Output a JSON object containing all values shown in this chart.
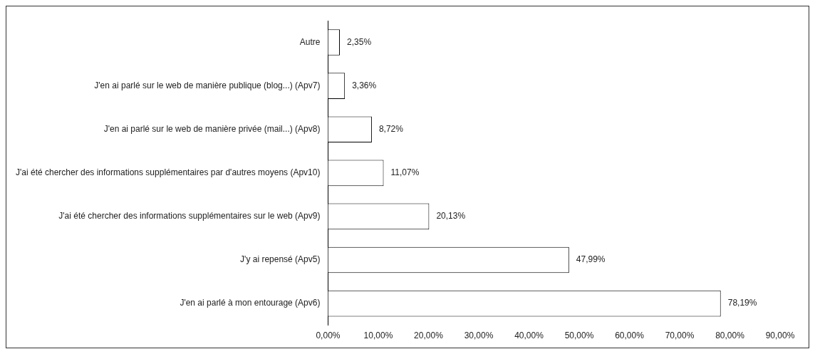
{
  "chart_data": {
    "type": "bar",
    "orientation": "horizontal",
    "categories": [
      "Autre",
      "J'en ai parlé sur le web de manière publique (blog...) (Apv7)",
      "J'en ai parlé sur le web de manière privée (mail...) (Apv8)",
      "J'ai été chercher des informations supplémentaires par d'autres moyens (Apv10)",
      "J'ai été chercher des informations supplémentaires sur le web (Apv9)",
      "J'y ai repensé (Apv5)",
      "J'en ai parlé à mon entourage (Apv6)"
    ],
    "values": [
      2.35,
      3.36,
      8.72,
      11.07,
      20.13,
      47.99,
      78.19
    ],
    "value_labels": [
      "2,35%",
      "3,36%",
      "8,72%",
      "11,07%",
      "20,13%",
      "47,99%",
      "78,19%"
    ],
    "color": "#ffffff",
    "xlim": [
      0,
      90
    ],
    "xticks": [
      {
        "value": 0,
        "label": "0,00%"
      },
      {
        "value": 10,
        "label": "10,00%"
      },
      {
        "value": 20,
        "label": "20,00%"
      },
      {
        "value": 30,
        "label": "30,00%"
      },
      {
        "value": 40,
        "label": "40,00%"
      },
      {
        "value": 50,
        "label": "50,00%"
      },
      {
        "value": 60,
        "label": "60,00%"
      },
      {
        "value": 70,
        "label": "70,00%"
      },
      {
        "value": 80,
        "label": "80,00%"
      },
      {
        "value": 90,
        "label": "90,00%"
      }
    ],
    "grid": false,
    "legend": false
  }
}
